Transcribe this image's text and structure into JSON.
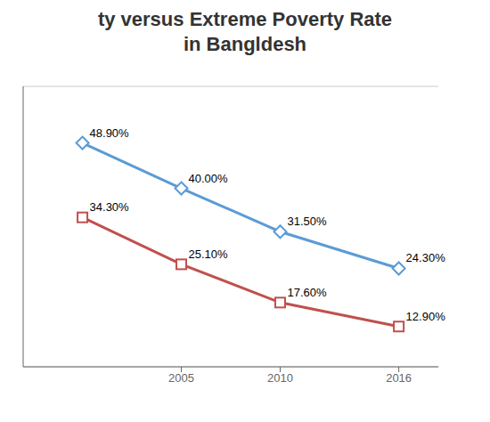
{
  "chart_data": {
    "type": "line",
    "title": "ty versus Extreme Poverty Rate\nin Bangldesh",
    "x": [
      2000,
      2005,
      2010,
      2016
    ],
    "series": [
      {
        "color": "#5B9BD5",
        "marker": "diamond",
        "values": [
          48.9,
          40.0,
          31.5,
          24.3
        ],
        "value_labels": [
          "48.90%",
          "40.00%",
          "31.50%",
          "24.30%"
        ]
      },
      {
        "color": "#C0504D",
        "marker": "square",
        "values": [
          34.3,
          25.1,
          17.6,
          12.9
        ],
        "value_labels": [
          "34.30%",
          "25.10%",
          "17.60%",
          "12.90%"
        ]
      }
    ],
    "xlim": [
      1997,
      2018
    ],
    "xticks": [
      2005,
      2010,
      2016
    ],
    "ylim": [
      5,
      60
    ],
    "yticks": [
      10,
      20,
      30,
      40,
      50
    ],
    "grid": true,
    "tick_labels": "x",
    "data_labels": true
  }
}
